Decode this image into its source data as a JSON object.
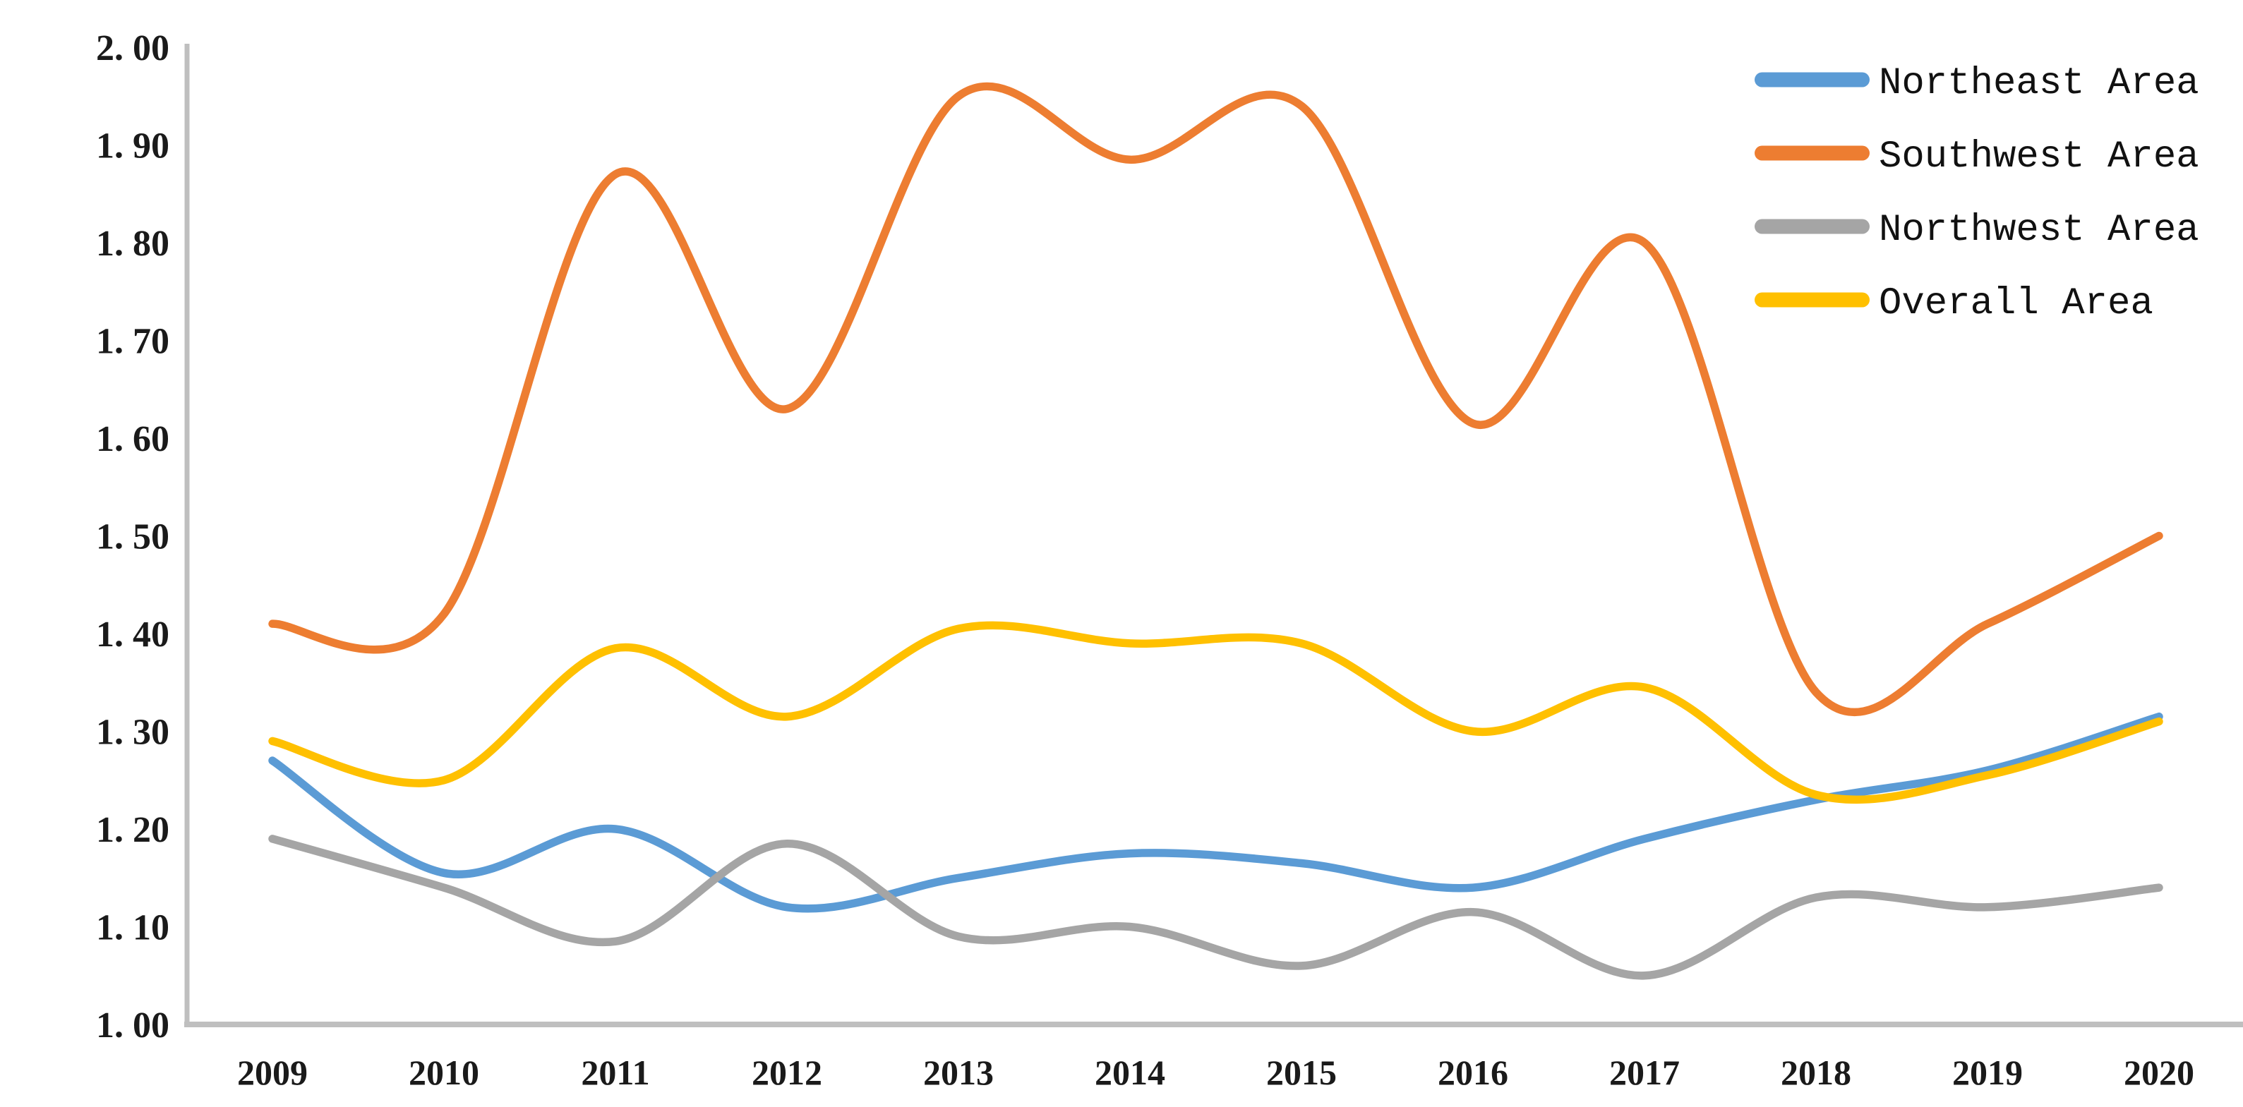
{
  "chart_data": {
    "type": "line",
    "title": "",
    "xlabel": "",
    "ylabel": "",
    "x": [
      2009,
      2010,
      2011,
      2012,
      2013,
      2014,
      2015,
      2016,
      2017,
      2018,
      2019,
      2020
    ],
    "x_labels": [
      "2009",
      "2010",
      "2011",
      "2012",
      "2013",
      "2014",
      "2015",
      "2016",
      "2017",
      "2018",
      "2019",
      "2020"
    ],
    "series": [
      {
        "name": "Northeast Area",
        "color": "#5B9BD5",
        "values": [
          1.27,
          1.155,
          1.2,
          1.12,
          1.15,
          1.175,
          1.165,
          1.14,
          1.19,
          1.23,
          1.26,
          1.315
        ]
      },
      {
        "name": "Southwest Area",
        "color": "#ED7D31",
        "values": [
          1.41,
          1.42,
          1.87,
          1.63,
          1.95,
          1.885,
          1.94,
          1.615,
          1.8,
          1.34,
          1.41,
          1.5
        ]
      },
      {
        "name": "Northwest Area",
        "color": "#A5A5A5",
        "values": [
          1.19,
          1.14,
          1.085,
          1.185,
          1.09,
          1.1,
          1.06,
          1.115,
          1.05,
          1.13,
          1.12,
          1.14
        ]
      },
      {
        "name": "Overall Area",
        "color": "#FFC000",
        "values": [
          1.29,
          1.25,
          1.385,
          1.315,
          1.405,
          1.39,
          1.39,
          1.3,
          1.345,
          1.235,
          1.255,
          1.31
        ]
      }
    ],
    "ylim": [
      1.0,
      2.0
    ],
    "ytick_step": 0.1,
    "ytick_labels": [
      "1. 00",
      "1. 10",
      "1. 20",
      "1. 30",
      "1. 40",
      "1. 50",
      "1. 60",
      "1. 70",
      "1. 80",
      "1. 90",
      "2. 00"
    ],
    "grid": false,
    "smooth": true,
    "legend_position": "top-right",
    "axis_color": "#BFBFBF",
    "text_color": "#1a1a1a",
    "background_color": "#FFFFFF"
  }
}
